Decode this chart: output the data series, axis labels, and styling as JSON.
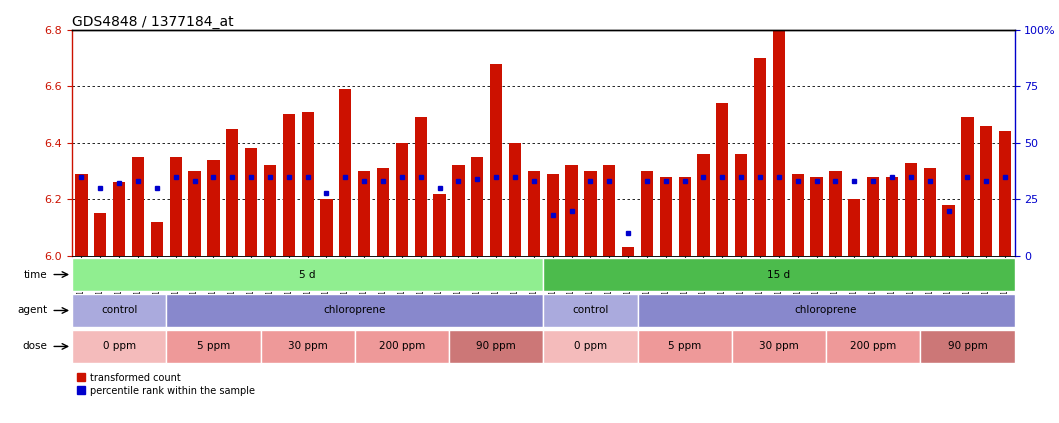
{
  "title": "GDS4848 / 1377184_at",
  "samples": [
    "GSM1001824",
    "GSM1001825",
    "GSM1001826",
    "GSM1001827",
    "GSM1001828",
    "GSM1001854",
    "GSM1001855",
    "GSM1001856",
    "GSM1001857",
    "GSM1001858",
    "GSM1001844",
    "GSM1001845",
    "GSM1001846",
    "GSM1001847",
    "GSM1001848",
    "GSM1001834",
    "GSM1001835",
    "GSM1001836",
    "GSM1001837",
    "GSM1001838",
    "GSM1001864",
    "GSM1001865",
    "GSM1001866",
    "GSM1001867",
    "GSM1001868",
    "GSM1001819",
    "GSM1001820",
    "GSM1001821",
    "GSM1001822",
    "GSM1001823",
    "GSM1001849",
    "GSM1001850",
    "GSM1001851",
    "GSM1001852",
    "GSM1001853",
    "GSM1001839",
    "GSM1001840",
    "GSM1001841",
    "GSM1001842",
    "GSM1001843",
    "GSM1001829",
    "GSM1001830",
    "GSM1001831",
    "GSM1001832",
    "GSM1001833",
    "GSM1001859",
    "GSM1001860",
    "GSM1001861",
    "GSM1001862",
    "GSM1001863"
  ],
  "bar_values": [
    6.29,
    6.15,
    6.26,
    6.35,
    6.12,
    6.35,
    6.3,
    6.34,
    6.45,
    6.38,
    6.32,
    6.5,
    6.51,
    6.2,
    6.59,
    6.3,
    6.31,
    6.4,
    6.49,
    6.22,
    6.32,
    6.35,
    6.68,
    6.4,
    6.3,
    6.29,
    6.32,
    6.3,
    6.32,
    6.03,
    6.3,
    6.28,
    6.28,
    6.36,
    6.54,
    6.36,
    6.7,
    6.8,
    6.29,
    6.28,
    6.3,
    6.2,
    6.28,
    6.28,
    6.33,
    6.31,
    6.18,
    6.49,
    6.46,
    6.44
  ],
  "percentile_values": [
    35,
    30,
    32,
    33,
    30,
    35,
    33,
    35,
    35,
    35,
    35,
    35,
    35,
    28,
    35,
    33,
    33,
    35,
    35,
    30,
    33,
    34,
    35,
    35,
    33,
    18,
    20,
    33,
    33,
    10,
    33,
    33,
    33,
    35,
    35,
    35,
    35,
    35,
    33,
    33,
    33,
    33,
    33,
    35,
    35,
    33,
    20,
    35,
    33,
    35
  ],
  "ymin": 6.0,
  "ymax": 6.8,
  "yticks": [
    6.0,
    6.2,
    6.4,
    6.6,
    6.8
  ],
  "right_yticks": [
    0,
    25,
    50,
    75,
    100
  ],
  "right_yticklabels": [
    "0",
    "25",
    "50",
    "75",
    "100%"
  ],
  "bar_color": "#CC1100",
  "dot_color": "#0000CC",
  "bg_color": "#FFFFFF",
  "title_fontsize": 10,
  "time_row": [
    {
      "label": "5 d",
      "start": 0,
      "end": 25,
      "color": "#90EE90"
    },
    {
      "label": "15 d",
      "start": 25,
      "end": 50,
      "color": "#4CBB4C"
    }
  ],
  "agent_row": [
    {
      "label": "control",
      "start": 0,
      "end": 5,
      "color": "#AAAADD"
    },
    {
      "label": "chloroprene",
      "start": 5,
      "end": 25,
      "color": "#8888CC"
    },
    {
      "label": "control",
      "start": 25,
      "end": 30,
      "color": "#AAAADD"
    },
    {
      "label": "chloroprene",
      "start": 30,
      "end": 50,
      "color": "#8888CC"
    }
  ],
  "dose_row": [
    {
      "label": "0 ppm",
      "start": 0,
      "end": 5,
      "color": "#F4BBBB"
    },
    {
      "label": "5 ppm",
      "start": 5,
      "end": 10,
      "color": "#EE9999"
    },
    {
      "label": "30 ppm",
      "start": 10,
      "end": 15,
      "color": "#EE9999"
    },
    {
      "label": "200 ppm",
      "start": 15,
      "end": 20,
      "color": "#EE9999"
    },
    {
      "label": "90 ppm",
      "start": 20,
      "end": 25,
      "color": "#CC7777"
    },
    {
      "label": "0 ppm",
      "start": 25,
      "end": 30,
      "color": "#F4BBBB"
    },
    {
      "label": "5 ppm",
      "start": 30,
      "end": 35,
      "color": "#EE9999"
    },
    {
      "label": "30 ppm",
      "start": 35,
      "end": 40,
      "color": "#EE9999"
    },
    {
      "label": "200 ppm",
      "start": 40,
      "end": 45,
      "color": "#EE9999"
    },
    {
      "label": "90 ppm",
      "start": 45,
      "end": 50,
      "color": "#CC7777"
    }
  ]
}
